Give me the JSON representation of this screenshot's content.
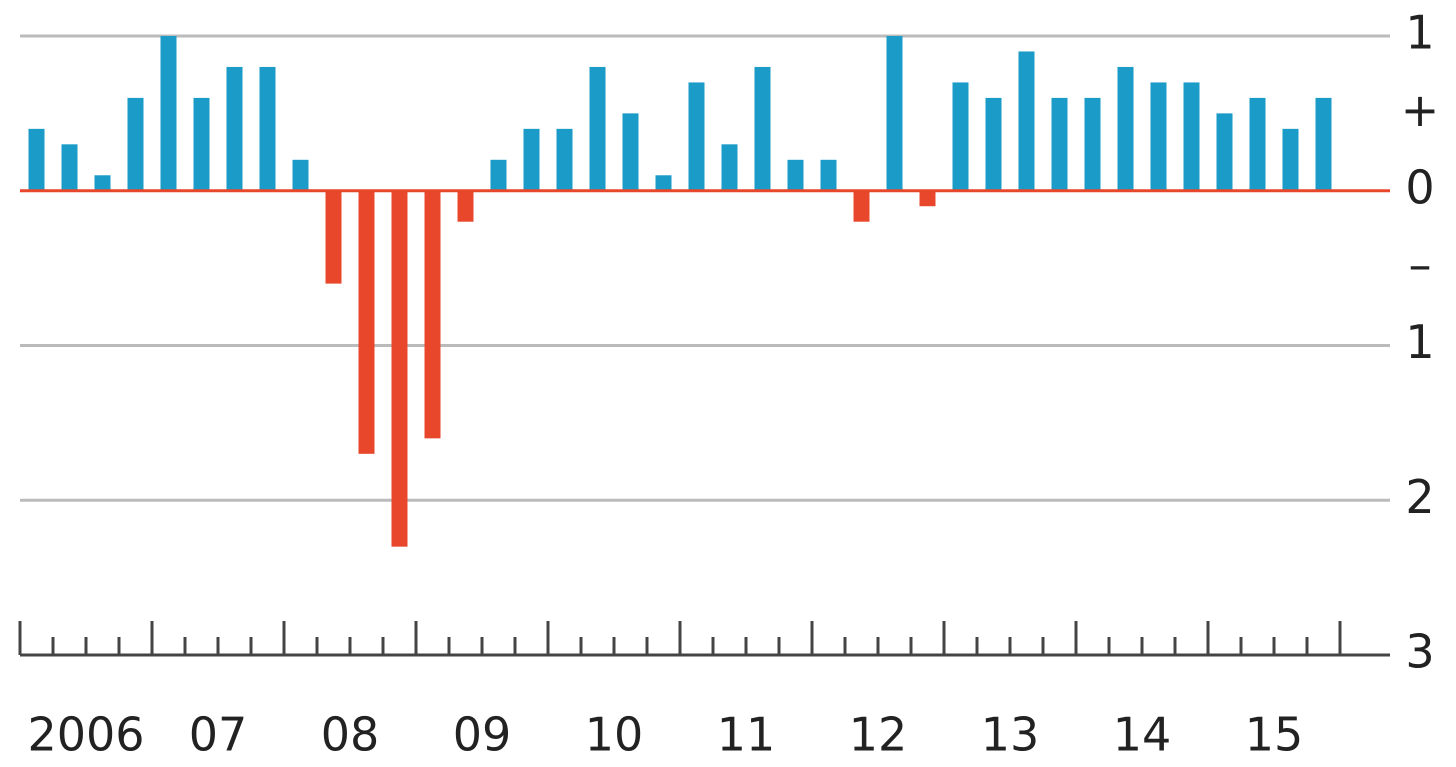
{
  "chart_data": {
    "type": "bar",
    "categories": [
      "2006",
      null,
      null,
      null,
      "07",
      null,
      null,
      null,
      "08",
      null,
      null,
      null,
      "09",
      null,
      null,
      null,
      "10",
      null,
      null,
      null,
      "11",
      null,
      null,
      null,
      "12",
      null,
      null,
      null,
      "13",
      null,
      null,
      null,
      "14",
      null,
      null,
      null,
      "15",
      null,
      null,
      null
    ],
    "values": [
      0.4,
      0.3,
      0.1,
      0.6,
      1.0,
      0.6,
      0.8,
      0.8,
      0.2,
      -0.6,
      -1.7,
      -2.3,
      -1.6,
      -0.2,
      0.2,
      0.4,
      0.4,
      0.8,
      0.5,
      0.1,
      0.7,
      0.3,
      0.8,
      0.2,
      0.2,
      -0.2,
      1.0,
      -0.1,
      0.7,
      0.6,
      0.9,
      0.6,
      0.6,
      0.8,
      0.7,
      0.7,
      0.5,
      0.6,
      0.4,
      0.6
    ],
    "color": "#1a9bc8",
    "negative_color": "#e8472b",
    "ylim": [
      -3,
      1
    ],
    "yticks": [
      1,
      {
        "value": 0.5,
        "label": "+"
      },
      0,
      {
        "value": -0.5,
        "label": "–"
      },
      {
        "value": -1,
        "label": "1"
      },
      {
        "value": -2,
        "label": "2"
      },
      {
        "value": -3,
        "label": "3"
      }
    ],
    "grid": true
  }
}
